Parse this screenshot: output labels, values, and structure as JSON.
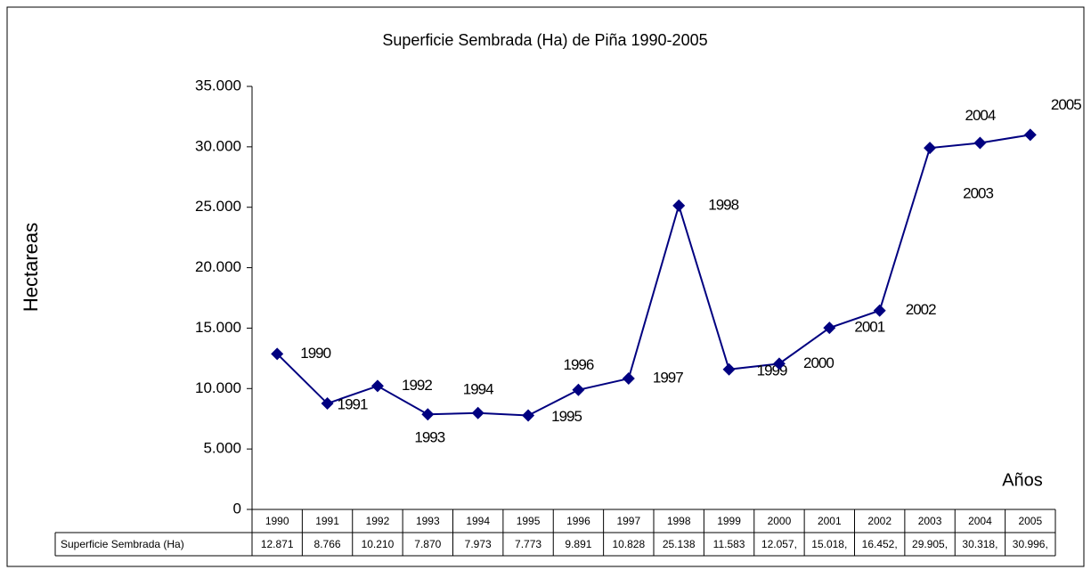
{
  "chart_data": {
    "type": "line",
    "title": "Superficie Sembrada (Ha) de Piña 1990-2005",
    "y_label": "Hectareas",
    "x_label": "Años",
    "categories": [
      "1990",
      "1991",
      "1992",
      "1993",
      "1994",
      "1995",
      "1996",
      "1997",
      "1998",
      "1999",
      "2000",
      "2001",
      "2002",
      "2003",
      "2004",
      "2005"
    ],
    "series": [
      {
        "name": "Superficie Sembrada (Ha)",
        "color": "#000080",
        "values": [
          12871,
          8766,
          10210,
          7870,
          7973,
          7773,
          9891,
          10828,
          25138,
          11583,
          12057,
          15018,
          16452,
          29905,
          30318,
          30996
        ],
        "value_labels": [
          "12.871",
          "8.766",
          "10.210",
          "7.870",
          "7.973",
          "7.773",
          "9.891",
          "10.828",
          "25.138",
          "11.583",
          "12.057,",
          "15.018,",
          "16.452,",
          "29.905,",
          "30.318,",
          "30.996,"
        ]
      }
    ],
    "ylim": [
      0,
      35000
    ],
    "yticks": [
      0,
      {
        "value": 5000,
        "label": "5.000"
      },
      {
        "value": 10000,
        "label": "10.000"
      },
      {
        "value": 15000,
        "label": "15.000"
      },
      {
        "value": 20000,
        "label": "20.000"
      },
      {
        "value": 25000,
        "label": "25.000"
      },
      {
        "value": 30000,
        "label": "30.000"
      },
      {
        "value": 35000,
        "label": "35.000"
      }
    ],
    "data_table": true
  }
}
